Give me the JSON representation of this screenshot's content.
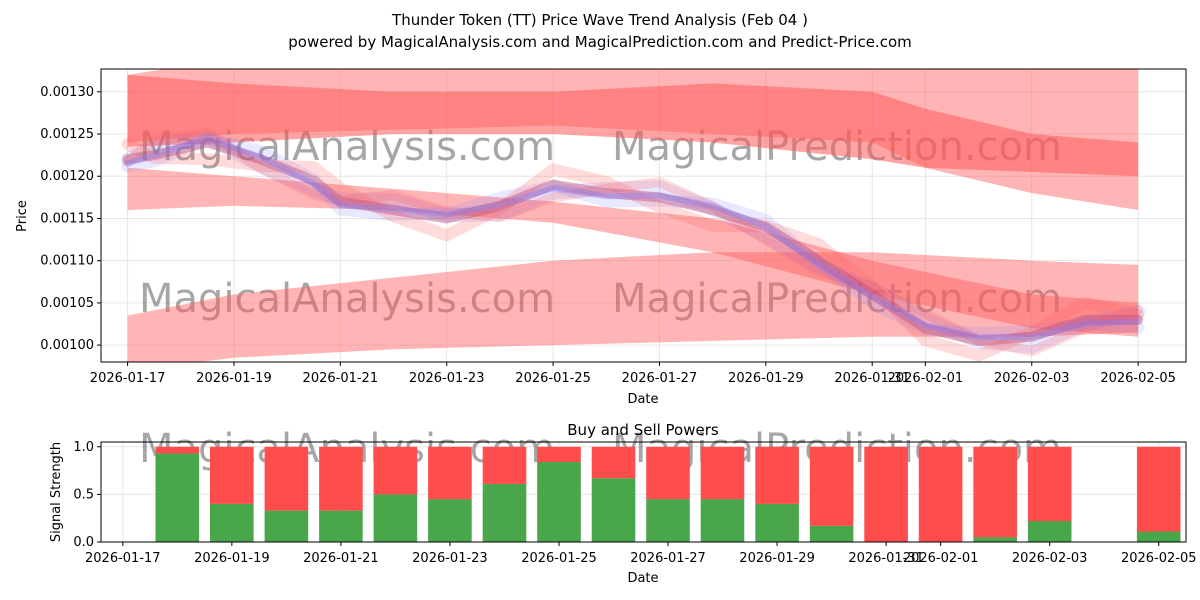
{
  "title": "Thunder Token (TT) Price Wave Trend Analysis (Feb 04 )",
  "subtitle": "powered by MagicalAnalysis.com and MagicalPrediction.com and Predict-Price.com",
  "watermarks": [
    "MagicalAnalysis.com",
    "MagicalPrediction.com"
  ],
  "colors": {
    "buy": "#4aa64a",
    "sell": "#ff4d4d",
    "band": "#ff5a5a",
    "blue": "#8080ff"
  },
  "chart_data": [
    {
      "type": "area",
      "title": "",
      "xlabel": "Date",
      "ylabel": "Price",
      "ylim": [
        0.00098,
        0.001327
      ],
      "xlim": [
        "2026-01-16.5",
        "2026-02-05.9"
      ],
      "yticks": [
        "0.00100",
        "0.00105",
        "0.00110",
        "0.00115",
        "0.00120",
        "0.00125",
        "0.00130"
      ],
      "xticks": [
        "2026-01-17",
        "2026-01-19",
        "2026-01-21",
        "2026-01-23",
        "2026-01-25",
        "2026-01-27",
        "2026-01-29",
        "2026-01-31",
        "2026-02-01",
        "2026-02-03",
        "2026-02-05"
      ],
      "grid": true,
      "bands": [
        {
          "name": "upper-band",
          "x": [
            0,
            2,
            5,
            8,
            11,
            14,
            15,
            17,
            19
          ],
          "low": [
            0.00124,
            0.00125,
            0.001255,
            0.00126,
            0.00125,
            0.00124,
            0.00121,
            0.00118,
            0.00116
          ],
          "high": [
            0.00132,
            0.00134,
            0.00134,
            0.00134,
            0.001335,
            0.00133,
            0.00133,
            0.00133,
            0.00133
          ]
        },
        {
          "name": "upper-band-2",
          "x": [
            0,
            2,
            5,
            8,
            11,
            14,
            15,
            17,
            19
          ],
          "low": [
            0.001235,
            0.00124,
            0.00125,
            0.00125,
            0.00124,
            0.00122,
            0.00121,
            0.001205,
            0.0012
          ],
          "high": [
            0.00132,
            0.00131,
            0.0013,
            0.0013,
            0.00131,
            0.0013,
            0.00128,
            0.00125,
            0.00124
          ]
        },
        {
          "name": "middle-band",
          "x": [
            0,
            2,
            5,
            8,
            11,
            14,
            17,
            19
          ],
          "low": [
            0.00116,
            0.001165,
            0.00116,
            0.001145,
            0.00111,
            0.00106,
            0.00102,
            0.00101
          ],
          "high": [
            0.00121,
            0.0012,
            0.001185,
            0.00117,
            0.00115,
            0.0011,
            0.00106,
            0.00105
          ]
        },
        {
          "name": "lower-band",
          "x": [
            0,
            2,
            5,
            8,
            11,
            14,
            17,
            19
          ],
          "low": [
            0.00097,
            0.000985,
            0.000995,
            0.001,
            0.001005,
            0.00101,
            0.00101,
            0.001015
          ],
          "high": [
            0.001035,
            0.00106,
            0.00108,
            0.0011,
            0.00111,
            0.00111,
            0.0011,
            0.001095
          ]
        }
      ],
      "series": [
        {
          "name": "price-wave",
          "x": [
            0,
            0.5,
            1.5,
            2.5,
            3.5,
            4,
            5,
            6,
            7,
            8,
            9,
            10,
            11,
            12,
            13,
            14,
            15,
            16,
            17,
            18,
            19
          ],
          "values": [
            0.00122,
            0.001225,
            0.00124,
            0.00122,
            0.001195,
            0.00117,
            0.00116,
            0.00115,
            0.001165,
            0.00119,
            0.00118,
            0.001175,
            0.00116,
            0.00114,
            0.0011,
            0.00106,
            0.00102,
            0.001005,
            0.00101,
            0.00103,
            0.00103
          ]
        }
      ]
    },
    {
      "type": "bar",
      "title": "Buy and Sell Powers",
      "xlabel": "Date",
      "ylabel": "Signal Strength",
      "ylim": [
        0,
        1.05
      ],
      "yticks": [
        "0.0",
        "0.5",
        "1.0"
      ],
      "xticks": [
        "2026-01-17",
        "2026-01-19",
        "2026-01-21",
        "2026-01-23",
        "2026-01-25",
        "2026-01-27",
        "2026-01-29",
        "2026-01-31",
        "2026-02-01",
        "2026-02-03",
        "2026-02-05"
      ],
      "categories": [
        "2026-01-18",
        "2026-01-19",
        "2026-01-20",
        "2026-01-21",
        "2026-01-22",
        "2026-01-23",
        "2026-01-24",
        "2026-01-25",
        "2026-01-26",
        "2026-01-27",
        "2026-01-28",
        "2026-01-29",
        "2026-01-30",
        "2026-01-31",
        "2026-02-01",
        "2026-02-02",
        "2026-02-03",
        "2026-02-05"
      ],
      "series": [
        {
          "name": "Buy",
          "values": [
            0.93,
            0.4,
            0.33,
            0.33,
            0.5,
            0.45,
            0.61,
            0.84,
            0.67,
            0.45,
            0.45,
            0.4,
            0.17,
            0.0,
            0.0,
            0.05,
            0.22,
            0.11
          ]
        },
        {
          "name": "Sell",
          "values": [
            0.07,
            0.6,
            0.67,
            0.67,
            0.5,
            0.55,
            0.39,
            0.16,
            0.33,
            0.55,
            0.55,
            0.6,
            0.83,
            1.0,
            1.0,
            0.95,
            0.78,
            0.89
          ]
        }
      ]
    }
  ]
}
